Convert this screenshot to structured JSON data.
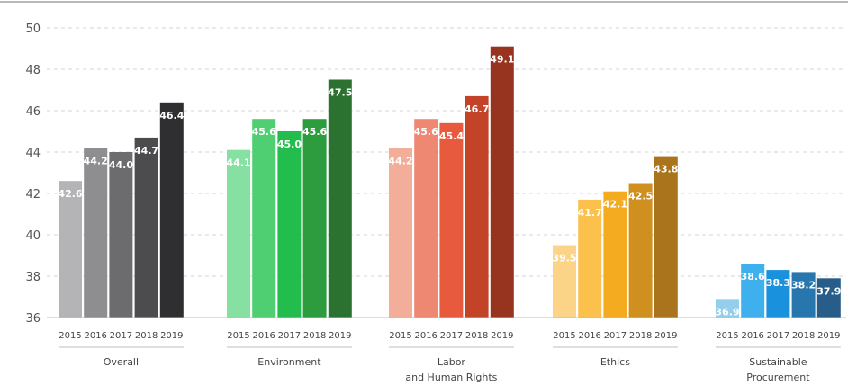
{
  "chart_data": {
    "type": "bar",
    "ylim": [
      36,
      50
    ],
    "yticks": [
      36,
      38,
      40,
      42,
      44,
      46,
      48,
      50
    ],
    "grid": true,
    "years": [
      "2015",
      "2016",
      "2017",
      "2018",
      "2019"
    ],
    "groups": [
      {
        "label_lines": [
          "Overall"
        ],
        "values": [
          42.6,
          44.2,
          44.0,
          44.7,
          46.4
        ],
        "labels": [
          "42.6",
          "44.2",
          "44.0",
          "44.7",
          "46.4"
        ],
        "colors": [
          "#b4b4b6",
          "#8e8e90",
          "#6c6c6e",
          "#4c4c4e",
          "#2f2f31"
        ]
      },
      {
        "label_lines": [
          "Environment"
        ],
        "values": [
          44.1,
          45.6,
          45.0,
          45.6,
          47.5
        ],
        "labels": [
          "44.1",
          "45.6",
          "45.0",
          "45.6",
          "47.5"
        ],
        "colors": [
          "#86e0a2",
          "#4fcf71",
          "#22bd4c",
          "#2c9c3f",
          "#2b7230"
        ]
      },
      {
        "label_lines": [
          "Labor",
          "and Human Rights"
        ],
        "values": [
          44.2,
          45.6,
          45.4,
          46.7,
          49.1
        ],
        "labels": [
          "44.2",
          "45.6",
          "45.4",
          "46.7",
          "49.1"
        ],
        "colors": [
          "#f3ae9a",
          "#ee8872",
          "#e85a3e",
          "#c24328",
          "#963420"
        ]
      },
      {
        "label_lines": [
          "Ethics"
        ],
        "values": [
          39.5,
          41.7,
          42.1,
          42.5,
          43.8
        ],
        "labels": [
          "39.5",
          "41.7",
          "42.1",
          "42.5",
          "43.8"
        ],
        "colors": [
          "#fcd487",
          "#fbc14c",
          "#f5ab1f",
          "#cf9020",
          "#a9741b"
        ]
      },
      {
        "label_lines": [
          "Sustainable",
          "Procurement"
        ],
        "values": [
          36.9,
          38.6,
          38.3,
          38.2,
          37.9
        ],
        "labels": [
          "36.9",
          "38.6",
          "38.3",
          "38.2",
          "37.9"
        ],
        "colors": [
          "#93cfed",
          "#3fb0ee",
          "#1a91dd",
          "#2776ad",
          "#275d88"
        ]
      }
    ]
  }
}
